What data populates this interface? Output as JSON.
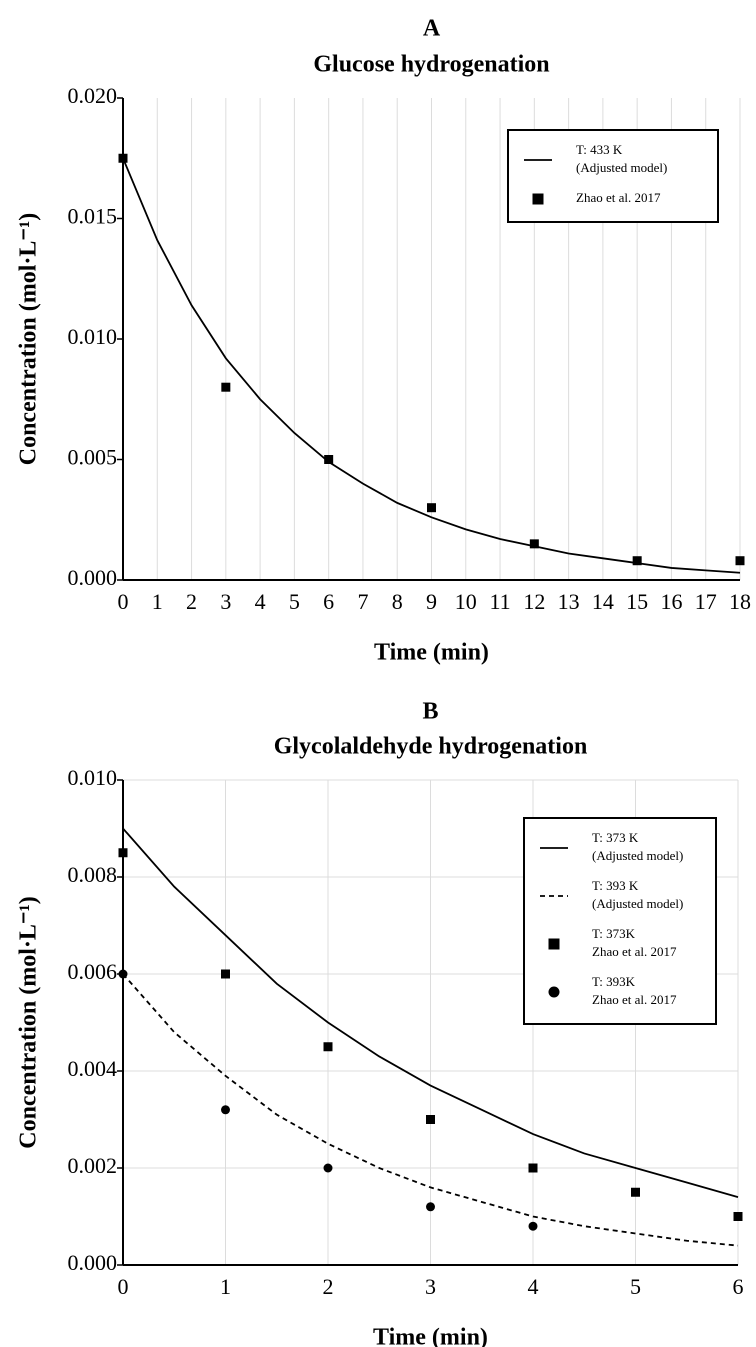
{
  "chart_data": [
    {
      "type": "line",
      "title": "A",
      "subtitle": "Glucose hydrogenation",
      "xlabel": "Time (min)",
      "ylabel": "Concentration (mol·L⁻¹)",
      "xlim": [
        0,
        18
      ],
      "xticks": [
        0,
        1,
        2,
        3,
        4,
        5,
        6,
        7,
        8,
        9,
        10,
        11,
        12,
        13,
        14,
        15,
        16,
        17,
        18
      ],
      "ylim": [
        0,
        0.02
      ],
      "yticks": [
        {
          "value": 0,
          "label": "0.000"
        },
        0.005,
        {
          "value": 0.01,
          "label": "0.010"
        },
        0.015,
        {
          "value": 0.02,
          "label": "0.020"
        }
      ],
      "grid": "x",
      "legend": "upper right",
      "series": [
        {
          "name": [
            "T: 433 K",
            "(Adjusted model)"
          ],
          "style": "solid",
          "color": "#000000",
          "x": [
            0,
            1,
            2,
            3,
            4,
            5,
            6,
            7,
            8,
            9,
            10,
            11,
            12,
            13,
            14,
            15,
            16,
            17,
            18
          ],
          "values": [
            0.0175,
            0.0141,
            0.0114,
            0.0092,
            0.0075,
            0.0061,
            0.0049,
            0.004,
            0.0032,
            0.0026,
            0.0021,
            0.0017,
            0.0014,
            0.0011,
            0.0009,
            0.0007,
            0.0005,
            0.0004,
            0.0003
          ]
        },
        {
          "name": [
            "Zhao et al. 2017"
          ],
          "style": "square",
          "color": "#000000",
          "x": [
            0,
            3,
            6,
            9,
            12,
            15,
            18
          ],
          "values": [
            0.0175,
            0.008,
            0.005,
            0.003,
            0.0015,
            0.0008,
            0.0008
          ]
        }
      ]
    },
    {
      "type": "line",
      "title": "B",
      "subtitle": "Glycolaldehyde hydrogenation",
      "xlabel": "Time (min)",
      "ylabel": "Concentration (mol·L⁻¹)",
      "xlim": [
        0,
        6
      ],
      "xticks": [
        0,
        1,
        2,
        3,
        4,
        5,
        6
      ],
      "ylim": [
        0,
        0.01
      ],
      "yticks": [
        {
          "value": 0,
          "label": "0.000"
        },
        0.002,
        0.004,
        0.006,
        0.008,
        {
          "value": 0.01,
          "label": "0.010"
        }
      ],
      "grid": "both",
      "legend": "upper right",
      "series": [
        {
          "name": [
            "T: 373 K",
            "(Adjusted model)"
          ],
          "style": "solid",
          "color": "#000000",
          "x": [
            0,
            0.5,
            1,
            1.5,
            2,
            2.5,
            3,
            3.5,
            4,
            4.5,
            5,
            5.5,
            6
          ],
          "values": [
            0.009,
            0.0078,
            0.0068,
            0.0058,
            0.005,
            0.0043,
            0.0037,
            0.0032,
            0.0027,
            0.0023,
            0.002,
            0.0017,
            0.0014
          ]
        },
        {
          "name": [
            "T: 393 K",
            "(Adjusted model)"
          ],
          "style": "dashed",
          "color": "#000000",
          "x": [
            0,
            0.5,
            1,
            1.5,
            2,
            2.5,
            3,
            3.5,
            4,
            4.5,
            5,
            5.5,
            6
          ],
          "values": [
            0.006,
            0.0048,
            0.0039,
            0.0031,
            0.0025,
            0.002,
            0.0016,
            0.0013,
            0.001,
            0.0008,
            0.00065,
            0.0005,
            0.0004
          ]
        },
        {
          "name": [
            "T: 373K",
            "Zhao et al. 2017"
          ],
          "style": "square",
          "color": "#000000",
          "x": [
            0,
            1,
            2,
            3,
            4,
            5,
            6
          ],
          "values": [
            0.0085,
            0.006,
            0.0045,
            0.003,
            0.002,
            0.0015,
            0.001
          ]
        },
        {
          "name": [
            "T: 393K",
            "Zhao et al. 2017"
          ],
          "style": "circle",
          "color": "#000000",
          "x": [
            0,
            1,
            2,
            3,
            4
          ],
          "values": [
            0.006,
            0.0032,
            0.002,
            0.0012,
            0.0008
          ]
        }
      ]
    }
  ]
}
